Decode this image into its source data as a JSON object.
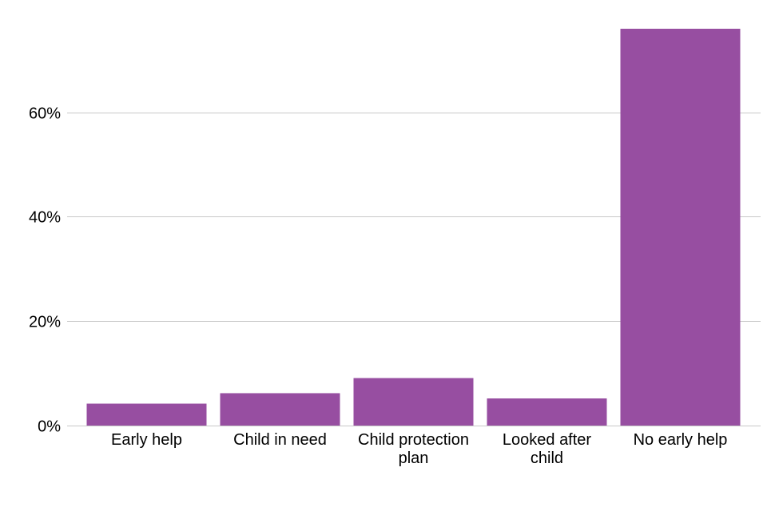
{
  "chart_data": {
    "type": "bar",
    "categories": [
      [
        "Early help"
      ],
      [
        "Child in need"
      ],
      [
        "Child protection",
        "plan"
      ],
      [
        "Looked after",
        "child"
      ],
      [
        "No early help"
      ]
    ],
    "values": [
      4.2,
      6.2,
      9.1,
      5.2,
      76.0
    ],
    "ylim": [
      0,
      76
    ],
    "yticks": [
      0,
      20,
      40,
      60
    ],
    "ytick_labels": [
      "0%",
      "20%",
      "40%",
      "60%"
    ],
    "title": "",
    "xlabel": "",
    "ylabel": "",
    "grid": true,
    "bar_color": "#974ea1"
  }
}
